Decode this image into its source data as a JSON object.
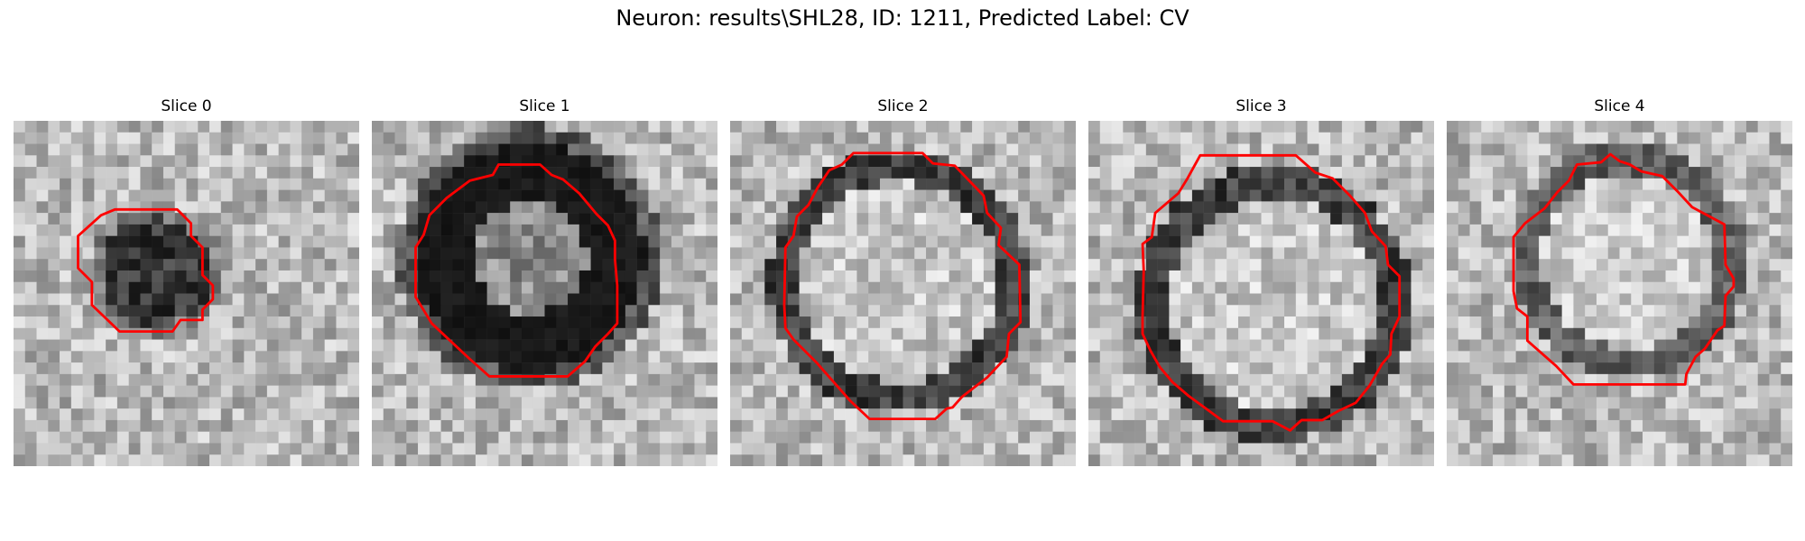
{
  "figure": {
    "title": "Neuron: results\\SHL28, ID: 1211, Predicted Label: CV",
    "contour_color": "#ff0000",
    "colormap": "gray",
    "panels": [
      {
        "title": "Slice 0",
        "tone": "dark-blob",
        "seed": 11
      },
      {
        "title": "Slice 1",
        "tone": "dark-ring-thick",
        "seed": 23
      },
      {
        "title": "Slice 2",
        "tone": "ring",
        "seed": 37
      },
      {
        "title": "Slice 3",
        "tone": "ring",
        "seed": 51
      },
      {
        "title": "Slice 4",
        "tone": "ring-light",
        "seed": 67
      }
    ]
  }
}
